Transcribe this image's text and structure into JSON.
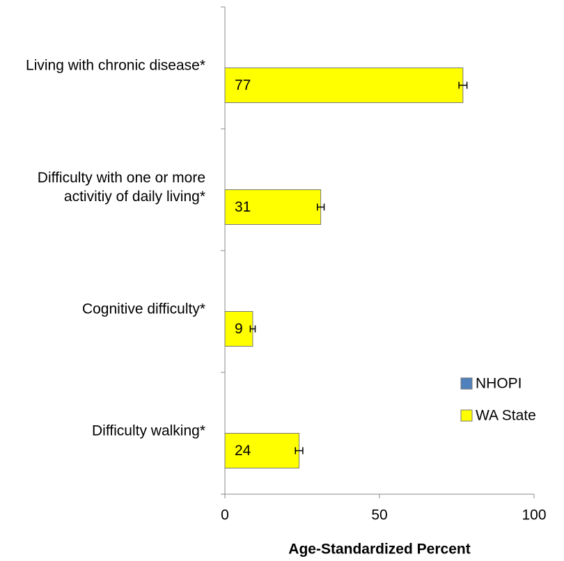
{
  "chart_data": {
    "type": "bar",
    "orientation": "horizontal",
    "x_label": "Age-Standardized Percent",
    "categories": [
      "Living with chronic disease*",
      "Difficulty with one or more activitiy of daily living*",
      "Cognitive difficulty*",
      "Difficulty walking*"
    ],
    "series": [
      {
        "name": "NHOPI",
        "color": "#4f81bd",
        "values": [
          null,
          null,
          null,
          null
        ]
      },
      {
        "name": "WA State",
        "color": "#ffff00",
        "values": [
          77,
          31,
          9,
          24
        ],
        "errors": [
          1.3,
          1.1,
          0.8,
          1.2
        ]
      }
    ],
    "xlim": [
      0,
      100
    ],
    "xticks": [
      0,
      50,
      100
    ],
    "legend": "right"
  }
}
